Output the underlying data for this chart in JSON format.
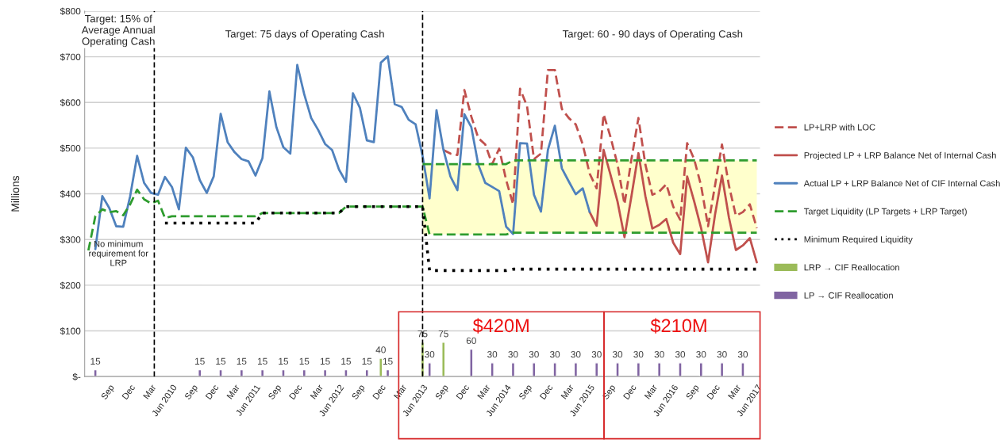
{
  "chart_data": {
    "type": "line",
    "ylabel": "Millions",
    "x": [
      "2009-06",
      "2009-07",
      "2009-08",
      "2009-09",
      "2009-10",
      "2009-11",
      "2009-12",
      "2010-01",
      "2010-02",
      "2010-03",
      "2010-04",
      "2010-05",
      "2010-06",
      "2010-07",
      "2010-08",
      "2010-09",
      "2010-10",
      "2010-11",
      "2010-12",
      "2011-01",
      "2011-02",
      "2011-03",
      "2011-04",
      "2011-05",
      "2011-06",
      "2011-07",
      "2011-08",
      "2011-09",
      "2011-10",
      "2011-11",
      "2011-12",
      "2012-01",
      "2012-02",
      "2012-03",
      "2012-04",
      "2012-05",
      "2012-06",
      "2012-07",
      "2012-08",
      "2012-09",
      "2012-10",
      "2012-11",
      "2012-12",
      "2013-01",
      "2013-02",
      "2013-03",
      "2013-04",
      "2013-05",
      "2013-06",
      "2013-07",
      "2013-08",
      "2013-09",
      "2013-10",
      "2013-11",
      "2013-12",
      "2014-01",
      "2014-02",
      "2014-03",
      "2014-04",
      "2014-05",
      "2014-06",
      "2014-07",
      "2014-08",
      "2014-09",
      "2014-10",
      "2014-11",
      "2014-12",
      "2015-01",
      "2015-02",
      "2015-03",
      "2015-04",
      "2015-05",
      "2015-06",
      "2015-07",
      "2015-08",
      "2015-09",
      "2015-10",
      "2015-11",
      "2015-12",
      "2016-01",
      "2016-02",
      "2016-03",
      "2016-04",
      "2016-05",
      "2016-06",
      "2016-07",
      "2016-08",
      "2016-09",
      "2016-10",
      "2016-11",
      "2016-12",
      "2017-01",
      "2017-02",
      "2017-03",
      "2017-04",
      "2017-05",
      "2017-06"
    ],
    "series": [
      {
        "name": "LP+LRP with LOC",
        "color": "#c0504d",
        "line_style": "dashed",
        "values": [
          null,
          null,
          null,
          null,
          null,
          null,
          null,
          null,
          null,
          null,
          null,
          null,
          null,
          null,
          null,
          null,
          null,
          null,
          null,
          null,
          null,
          null,
          null,
          null,
          null,
          null,
          null,
          null,
          null,
          null,
          null,
          null,
          null,
          null,
          null,
          null,
          null,
          null,
          null,
          null,
          null,
          null,
          null,
          null,
          null,
          null,
          null,
          null,
          null,
          null,
          null,
          496,
          488,
          485,
          627,
          569,
          522,
          508,
          465,
          499,
          430,
          377,
          630,
          592,
          476,
          488,
          671,
          671,
          586,
          566,
          552,
          508,
          444,
          412,
          574,
          524,
          464,
          377,
          476,
          566,
          464,
          398,
          405,
          421,
          372,
          343,
          511,
          476,
          418,
          329,
          418,
          508,
          418,
          352,
          360,
          377,
          325
        ]
      },
      {
        "name": "Projected LP + LRP Balance Net of Internal Cash",
        "color": "#c0504d",
        "line_style": "solid",
        "values": [
          null,
          null,
          null,
          null,
          null,
          null,
          null,
          null,
          null,
          null,
          null,
          null,
          null,
          null,
          null,
          null,
          null,
          null,
          null,
          null,
          null,
          null,
          null,
          null,
          null,
          null,
          null,
          null,
          null,
          null,
          null,
          null,
          null,
          null,
          null,
          null,
          null,
          null,
          null,
          null,
          null,
          null,
          null,
          null,
          null,
          null,
          null,
          null,
          null,
          null,
          null,
          null,
          null,
          null,
          null,
          null,
          null,
          null,
          null,
          null,
          null,
          null,
          null,
          null,
          null,
          null,
          null,
          null,
          null,
          null,
          null,
          null,
          360,
          330,
          496,
          441,
          383,
          305,
          395,
          489,
          395,
          324,
          332,
          345,
          293,
          268,
          438,
          384,
          325,
          250,
          354,
          440,
          348,
          277,
          287,
          303,
          250
        ]
      },
      {
        "name": "Actual LP + LRP Balance Net of CIF Internal Cash",
        "color": "#4f81bd",
        "line_style": "solid",
        "values": [
          null,
          279,
          395,
          369,
          329,
          328,
          395,
          483,
          424,
          402,
          398,
          437,
          415,
          366,
          501,
          480,
          430,
          402,
          438,
          575,
          513,
          491,
          476,
          471,
          440,
          478,
          624,
          546,
          502,
          488,
          682,
          618,
          566,
          540,
          509,
          496,
          453,
          426,
          620,
          588,
          517,
          513,
          687,
          701,
          596,
          590,
          562,
          552,
          483,
          390,
          583,
          496,
          438,
          408,
          574,
          546,
          464,
          424,
          415,
          406,
          328,
          312,
          511,
          510,
          398,
          361,
          496,
          549,
          456,
          427,
          399,
          412,
          360,
          null,
          null,
          null,
          null,
          null,
          null,
          null,
          null,
          null,
          null,
          null,
          null,
          null,
          null,
          null,
          null,
          null,
          null,
          null,
          null,
          null,
          null,
          null,
          null
        ]
      },
      {
        "name": "Target Liquidity (LP Targets + LRP Target)",
        "color": "#2e9c2e",
        "line_style": "dashed",
        "values": [
          276,
          351,
          366,
          360,
          362,
          353,
          377,
          409,
          388,
          379,
          385,
          347,
          351,
          351,
          351,
          351,
          351,
          351,
          351,
          351,
          351,
          351,
          351,
          351,
          351,
          358,
          358,
          358,
          358,
          358,
          358,
          358,
          358,
          358,
          358,
          358,
          358,
          372,
          372,
          372,
          372,
          372,
          372,
          372,
          372,
          372,
          372,
          372,
          372,
          311,
          311,
          311,
          311,
          311,
          311,
          311,
          311,
          311,
          311,
          311,
          311,
          315,
          315,
          315,
          315,
          315,
          315,
          315,
          315,
          315,
          315,
          315,
          315,
          315,
          315,
          315,
          315,
          315,
          315,
          315,
          315,
          315,
          315,
          315,
          315,
          315,
          315,
          315,
          315,
          315,
          315,
          315,
          315,
          315,
          315,
          315,
          315
        ]
      },
      {
        "color": "#2e9c2e",
        "line_style": "dashed",
        "values": [
          null,
          null,
          null,
          null,
          null,
          null,
          null,
          null,
          null,
          null,
          null,
          null,
          null,
          null,
          null,
          null,
          null,
          null,
          null,
          null,
          null,
          null,
          null,
          null,
          null,
          null,
          null,
          null,
          null,
          null,
          null,
          null,
          null,
          null,
          null,
          null,
          null,
          null,
          null,
          null,
          null,
          null,
          null,
          null,
          null,
          null,
          null,
          null,
          465,
          465,
          465,
          465,
          465,
          465,
          465,
          465,
          465,
          465,
          465,
          465,
          465,
          473,
          473,
          473,
          473,
          473,
          473,
          473,
          473,
          473,
          473,
          473,
          473,
          473,
          473,
          473,
          473,
          473,
          473,
          473,
          473,
          473,
          473,
          473,
          473,
          473,
          473,
          473,
          473,
          473,
          473,
          473,
          473,
          473,
          473,
          473,
          473
        ],
        "lower": [
          null,
          null,
          null,
          null,
          null,
          null,
          null,
          null,
          null,
          null,
          null,
          null,
          null,
          null,
          null,
          null,
          null,
          null,
          null,
          null,
          null,
          null,
          null,
          null,
          null,
          null,
          null,
          null,
          null,
          null,
          null,
          null,
          null,
          null,
          null,
          null,
          null,
          null,
          null,
          null,
          null,
          null,
          null,
          null,
          null,
          null,
          null,
          null,
          311,
          311,
          311,
          311,
          311,
          311,
          311,
          311,
          311,
          311,
          311,
          311,
          311,
          315,
          315,
          315,
          315,
          315,
          315,
          315,
          315,
          315,
          315,
          315,
          315,
          315,
          315,
          315,
          315,
          315,
          315,
          315,
          315,
          315,
          315,
          315,
          315,
          315,
          315,
          315,
          315,
          315,
          315,
          315,
          315,
          315,
          315,
          315,
          315
        ],
        "upper": [
          null,
          null,
          null,
          null,
          null,
          null,
          null,
          null,
          null,
          null,
          null,
          null,
          null,
          null,
          null,
          null,
          null,
          null,
          null,
          null,
          null,
          null,
          null,
          null,
          null,
          null,
          null,
          null,
          null,
          null,
          null,
          null,
          null,
          null,
          null,
          null,
          null,
          null,
          null,
          null,
          null,
          null,
          null,
          null,
          null,
          null,
          null,
          null,
          465,
          465,
          465,
          465,
          465,
          465,
          465,
          465,
          465,
          465,
          465,
          465,
          465,
          473,
          473,
          473,
          473,
          473,
          473,
          473,
          473,
          473,
          473,
          473,
          473,
          473,
          473,
          473,
          473,
          473,
          473,
          473,
          473,
          473,
          473,
          473,
          473,
          473,
          473,
          473,
          473,
          473,
          473,
          473,
          473,
          473,
          473,
          473,
          473
        ]
      },
      {
        "name": "Minimum Required Liquidity",
        "color": "#000000",
        "line_style": "dotted",
        "values": [
          null,
          null,
          null,
          null,
          null,
          null,
          null,
          null,
          null,
          null,
          null,
          336,
          336,
          336,
          336,
          336,
          336,
          336,
          336,
          336,
          336,
          336,
          336,
          336,
          336,
          358,
          358,
          358,
          358,
          358,
          358,
          358,
          358,
          358,
          358,
          358,
          358,
          372,
          372,
          372,
          372,
          372,
          372,
          372,
          372,
          372,
          372,
          372,
          372,
          232,
          232,
          232,
          232,
          232,
          232,
          232,
          232,
          232,
          232,
          232,
          232,
          235,
          235,
          235,
          235,
          235,
          235,
          235,
          235,
          235,
          235,
          235,
          235,
          235,
          235,
          235,
          235,
          235,
          235,
          235,
          235,
          235,
          235,
          235,
          235,
          235,
          235,
          235,
          235,
          235,
          235,
          235,
          235,
          235,
          235,
          235,
          235
        ]
      },
      {
        "name": "LRP → CIF Reallocation",
        "type": "bar",
        "color": "#9bbb59",
        "x": [
          "2012-12",
          "2013-06",
          "2013-09"
        ],
        "values": [
          40,
          75,
          75
        ],
        "value_labels": [
          "40",
          "75",
          "75"
        ]
      },
      {
        "name": "LP → CIF Reallocation",
        "type": "bar",
        "color": "#8064a2",
        "x": [
          "2009-07",
          "2010-10",
          "2011-01",
          "2011-04",
          "2011-07",
          "2011-10",
          "2012-01",
          "2012-04",
          "2012-07",
          "2012-10",
          "2013-01",
          "2013-07",
          "2014-01",
          "2014-04",
          "2014-07",
          "2014-10",
          "2015-01",
          "2015-04",
          "2015-07",
          "2015-10",
          "2016-01",
          "2016-04",
          "2016-07",
          "2016-10",
          "2017-01",
          "2017-04"
        ],
        "values": [
          15,
          15,
          15,
          15,
          15,
          15,
          15,
          15,
          15,
          15,
          15,
          30,
          60,
          30,
          30,
          30,
          30,
          30,
          30,
          30,
          30,
          30,
          30,
          30,
          30,
          30
        ],
        "value_labels": [
          "15",
          "15",
          "15",
          "15",
          "15",
          "15",
          "15",
          "15",
          "15",
          "15",
          "15",
          "30",
          "60",
          "30",
          "30",
          "30",
          "30",
          "30",
          "30",
          "30",
          "30",
          "30",
          "30",
          "30",
          "30",
          "30"
        ]
      }
    ],
    "xlim": [
      "2009-05-15",
      "2017-06-15"
    ],
    "xticks": [
      {
        "value": "2009-09",
        "label": "Sep"
      },
      {
        "value": "2009-12",
        "label": "Dec"
      },
      {
        "value": "2010-03",
        "label": "Mar"
      },
      {
        "value": "2010-06",
        "label": "Jun 2010"
      },
      {
        "value": "2010-09",
        "label": "Sep"
      },
      {
        "value": "2010-12",
        "label": "Dec"
      },
      {
        "value": "2011-03",
        "label": "Mar"
      },
      {
        "value": "2011-06",
        "label": "Jun 2011"
      },
      {
        "value": "2011-09",
        "label": "Sep"
      },
      {
        "value": "2011-12",
        "label": "Dec"
      },
      {
        "value": "2012-03",
        "label": "Mar"
      },
      {
        "value": "2012-06",
        "label": "Jun 2012"
      },
      {
        "value": "2012-09",
        "label": "Sep"
      },
      {
        "value": "2012-12",
        "label": "Dec"
      },
      {
        "value": "2013-03",
        "label": "Mar"
      },
      {
        "value": "2013-06",
        "label": "Jun 2013"
      },
      {
        "value": "2013-09",
        "label": "Sep"
      },
      {
        "value": "2013-12",
        "label": "Dec"
      },
      {
        "value": "2014-03",
        "label": "Mar"
      },
      {
        "value": "2014-06",
        "label": "Jun 2014"
      },
      {
        "value": "2014-09",
        "label": "Sep"
      },
      {
        "value": "2014-12",
        "label": "Dec"
      },
      {
        "value": "2015-03",
        "label": "Mar"
      },
      {
        "value": "2015-06",
        "label": "Jun 2015"
      },
      {
        "value": "2015-09",
        "label": "Sep"
      },
      {
        "value": "2015-12",
        "label": "Dec"
      },
      {
        "value": "2016-03",
        "label": "Mar"
      },
      {
        "value": "2016-06",
        "label": "Jun 2016"
      },
      {
        "value": "2016-09",
        "label": "Sep"
      },
      {
        "value": "2016-12",
        "label": "Dec"
      },
      {
        "value": "2017-03",
        "label": "Mar"
      },
      {
        "value": "2017-06",
        "label": "Jun 2017"
      }
    ],
    "ylim": [
      0,
      800
    ],
    "yticks": [
      {
        "value": 0,
        "label": "$-"
      },
      {
        "value": 100,
        "label": "$100"
      },
      {
        "value": 200,
        "label": "$200"
      },
      {
        "value": 300,
        "label": "$300"
      },
      {
        "value": 400,
        "label": "$400"
      },
      {
        "value": 500,
        "label": "$500"
      },
      {
        "value": 600,
        "label": "$600"
      },
      {
        "value": 700,
        "label": "$700"
      },
      {
        "value": 800,
        "label": "$800"
      }
    ],
    "ref_lines": [
      {
        "axis": "x",
        "value": "2010-03-15",
        "color": "#000000",
        "line_style": "dashed"
      },
      {
        "axis": "x",
        "value": "2013-06",
        "color": "#000000",
        "line_style": "dashed"
      }
    ],
    "annotations": [
      "Target: 15% of\nAverage Annual\nOperating Cash",
      "Target: 75 days of Operating Cash",
      "Target: 60 - 90 days of Operating Cash",
      "No minimum\nrequirement for\nLRP",
      "$420M",
      "$210M"
    ],
    "grid": "y",
    "legend": "right"
  }
}
